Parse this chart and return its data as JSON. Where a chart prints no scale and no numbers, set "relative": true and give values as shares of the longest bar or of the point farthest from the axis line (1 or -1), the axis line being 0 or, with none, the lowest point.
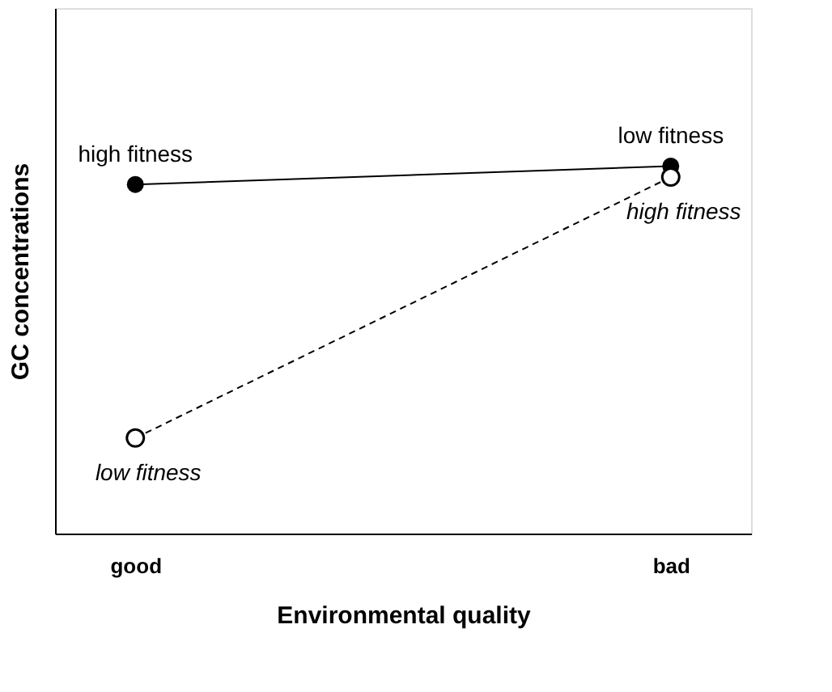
{
  "chart_data": {
    "type": "line",
    "relative": true,
    "xlabel": "Environmental quality",
    "ylabel": "GC concentrations",
    "categories": [
      "good",
      "bad"
    ],
    "tick_labels": "x",
    "grid": false,
    "marker": "circle",
    "series": [
      {
        "color": "#000000",
        "values": [
          0.95,
          1.0
        ],
        "line_style": "solid"
      },
      {
        "color": "#000000",
        "values": [
          0.26,
          0.97
        ],
        "line_style": "dashed"
      }
    ],
    "annotations": [
      {
        "text": "high fitness",
        "x": "good",
        "y": 0.95
      },
      {
        "text": "low fitness",
        "x": "bad",
        "y": 1.0
      },
      {
        "text": "high fitness",
        "x": "bad",
        "y": 0.97
      },
      {
        "text": "low fitness",
        "x": "good",
        "y": 0.26
      }
    ]
  }
}
